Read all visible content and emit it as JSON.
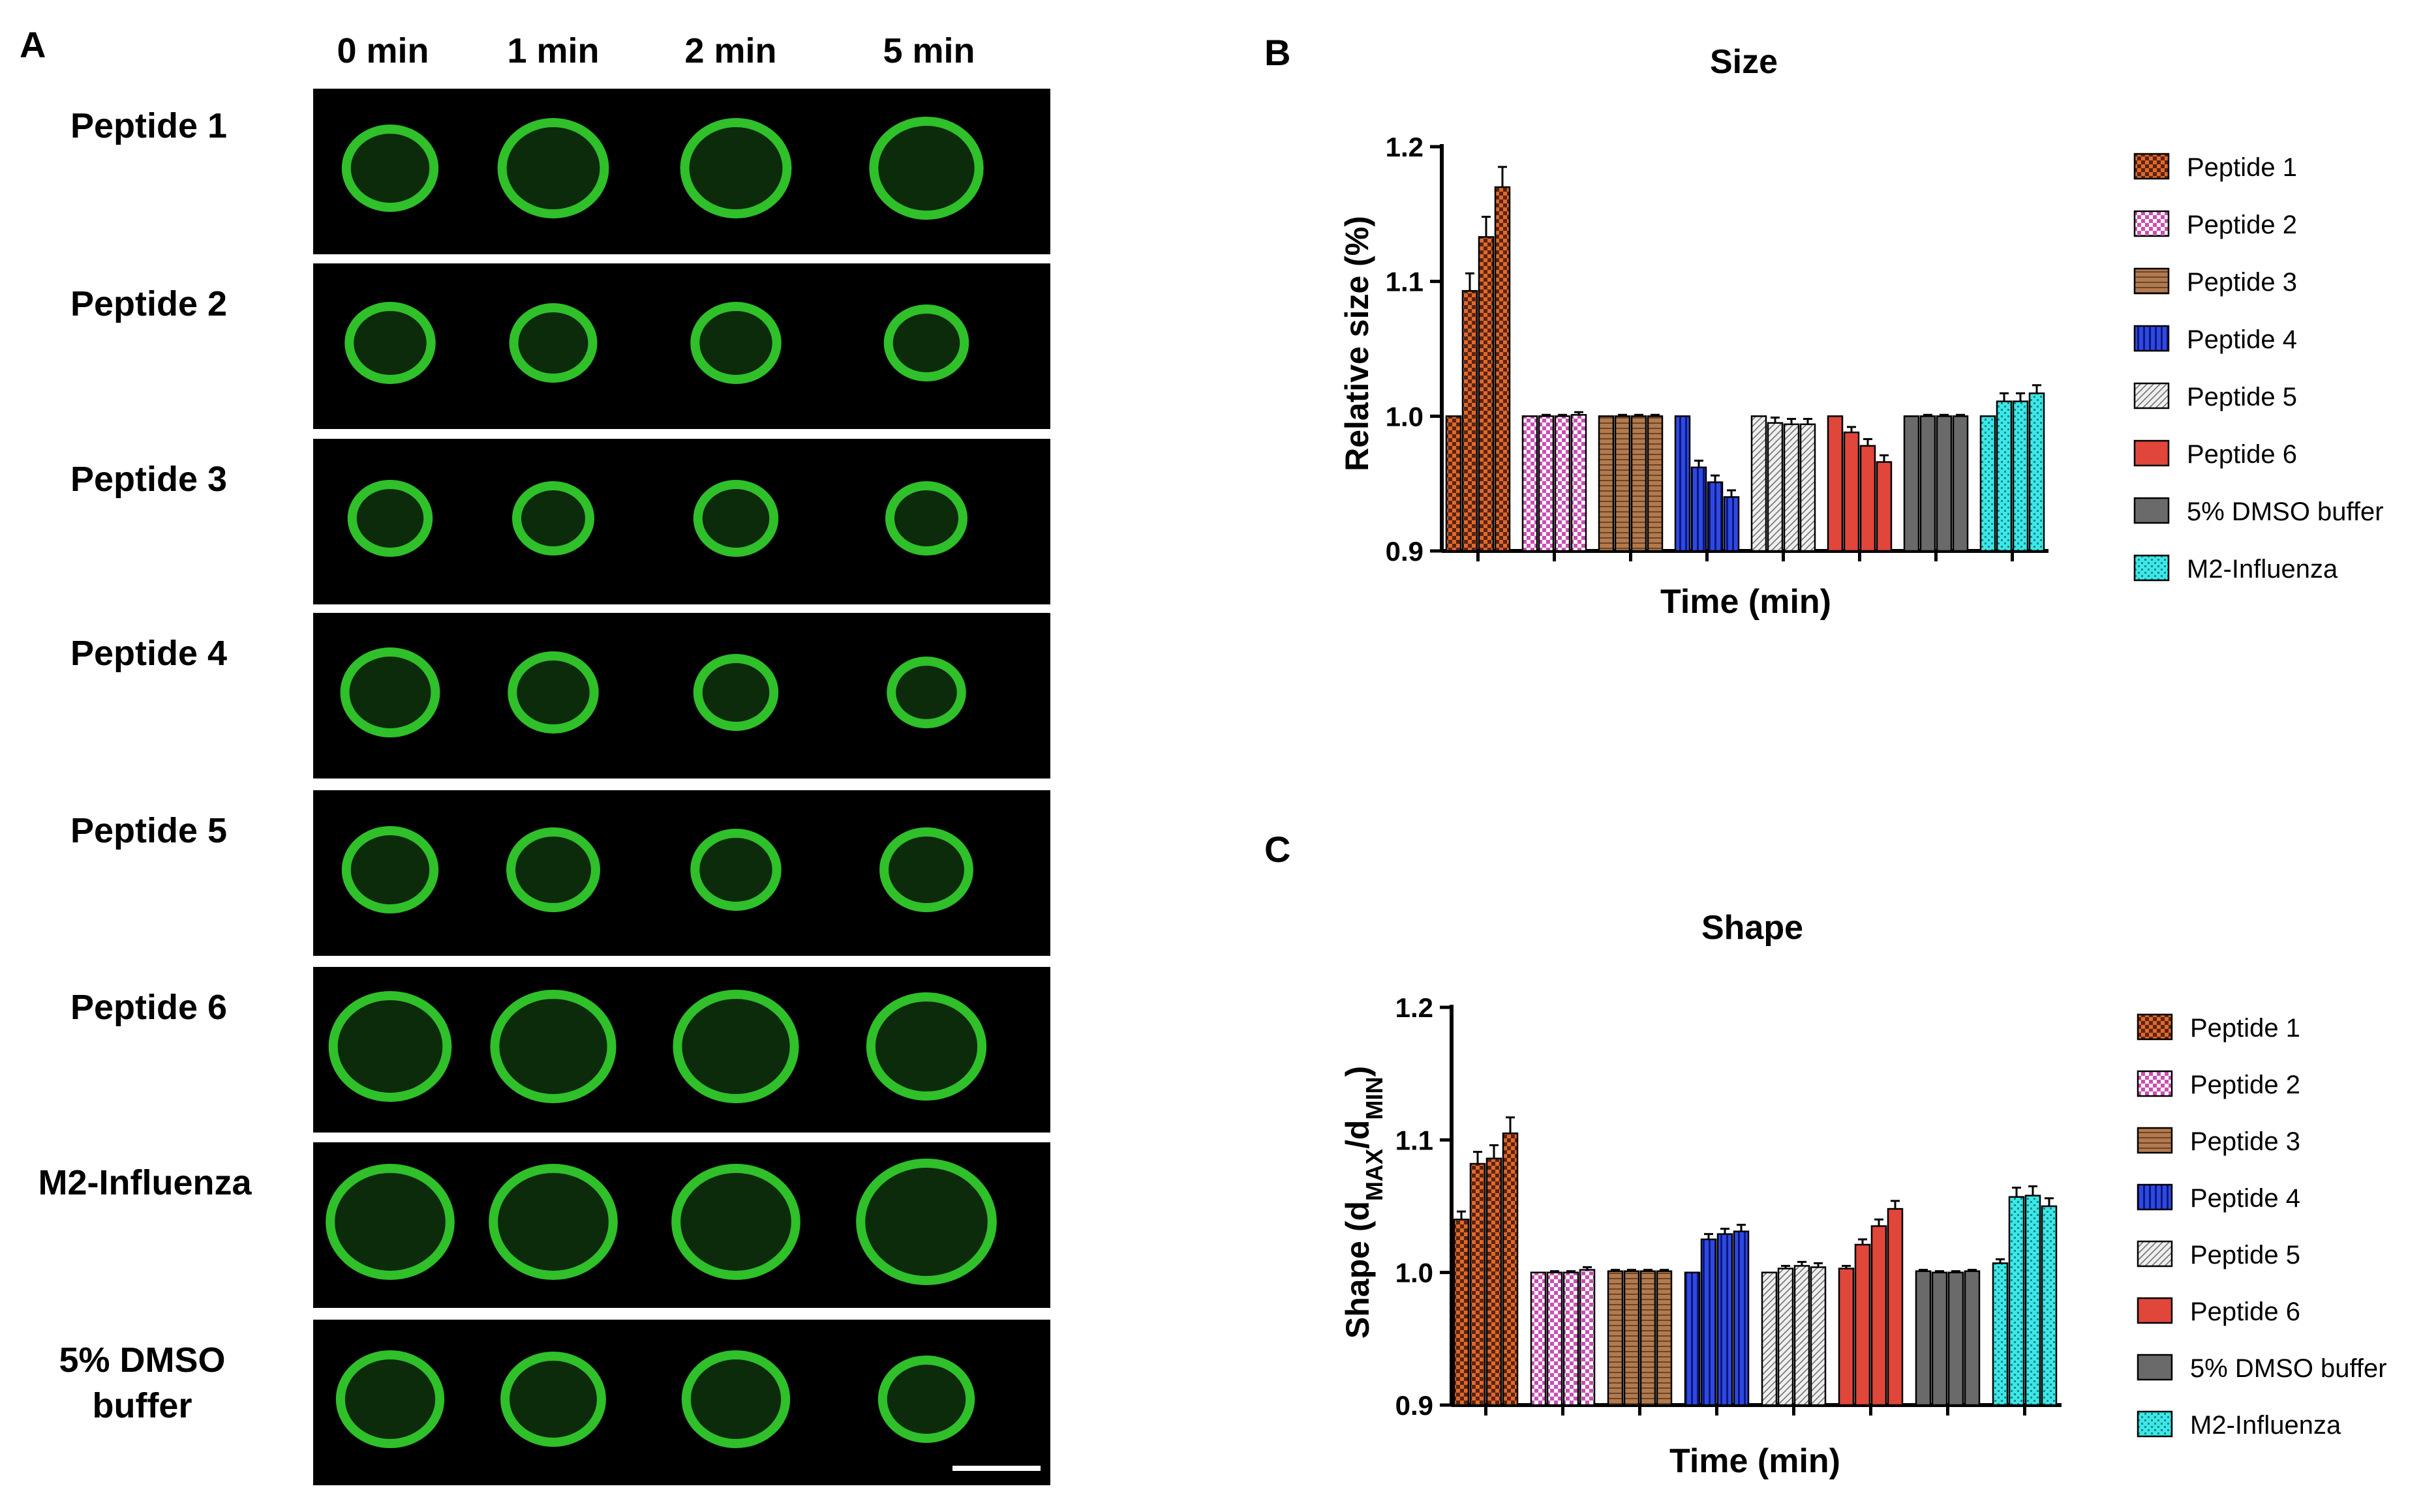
{
  "panel_a": {
    "letter": "A",
    "time_labels": [
      "0 min",
      "1 min",
      "2 min",
      "5 min"
    ],
    "row_labels": [
      [
        "Peptide 1"
      ],
      [
        "Peptide 2"
      ],
      [
        "Peptide 3"
      ],
      [
        "Peptide 4"
      ],
      [
        "Peptide 5"
      ],
      [
        "Peptide 6"
      ],
      [
        "M2-Influenza"
      ],
      [
        "5% DMSO",
        "buffer"
      ]
    ],
    "image_bg_color": "#000000",
    "cell_color": "#2fc02a"
  },
  "chart_data": [
    {
      "type": "bar",
      "panel": "B",
      "title": "Size",
      "xlabel": "Time (min)",
      "ylabel": "Relative size (%)",
      "ylim": [
        0.9,
        1.2
      ],
      "yticks": [
        "0.9",
        "1.0",
        "1.1",
        "1.2"
      ],
      "grid": false,
      "legend_position": "right",
      "series": [
        {
          "name": "Peptide 1",
          "values": [
            1.0,
            1.093,
            1.133,
            1.17
          ],
          "errors": [
            0,
            0.013,
            0.015,
            0.015
          ],
          "color": "#e0692a",
          "pattern": "checker"
        },
        {
          "name": "Peptide 2",
          "values": [
            1.0,
            1.0,
            1.0,
            1.001
          ],
          "errors": [
            0,
            0.001,
            0.001,
            0.002
          ],
          "color": "#c94fb4",
          "pattern": "checker-light"
        },
        {
          "name": "Peptide 3",
          "values": [
            1.0,
            1.0,
            1.0,
            1.0
          ],
          "errors": [
            0,
            0.001,
            0.001,
            0.001
          ],
          "color": "#b27a4f",
          "pattern": "hlines"
        },
        {
          "name": "Peptide 4",
          "values": [
            1.0,
            0.962,
            0.951,
            0.94
          ],
          "errors": [
            0,
            0.005,
            0.005,
            0.005
          ],
          "color": "#2f49e0",
          "pattern": "vlines"
        },
        {
          "name": "Peptide 5",
          "values": [
            1.0,
            0.995,
            0.994,
            0.994
          ],
          "errors": [
            0,
            0.004,
            0.004,
            0.004
          ],
          "color": "#efefef",
          "pattern": "diag"
        },
        {
          "name": "Peptide 6",
          "values": [
            1.0,
            0.988,
            0.978,
            0.966
          ],
          "errors": [
            0,
            0.004,
            0.005,
            0.005
          ],
          "color": "#e0463a",
          "pattern": "solid"
        },
        {
          "name": "5% DMSO buffer",
          "values": [
            1.0,
            1.0,
            1.0,
            1.0
          ],
          "errors": [
            0,
            0.001,
            0.001,
            0.001
          ],
          "color": "#6a6a6a",
          "pattern": "solid"
        },
        {
          "name": "M2-Influenza",
          "values": [
            1.0,
            1.011,
            1.011,
            1.017
          ],
          "errors": [
            0,
            0.006,
            0.006,
            0.006
          ],
          "color": "#3fe6e6",
          "pattern": "dots"
        }
      ]
    },
    {
      "type": "bar",
      "panel": "C",
      "title": "Shape",
      "xlabel": "Time (min)",
      "ylabel": "Shape (d",
      "ylabel_sub1": "MAX",
      "ylabel_mid": "/d",
      "ylabel_sub2": "MIN",
      "ylabel_end": ")",
      "ylim": [
        0.9,
        1.2
      ],
      "yticks": [
        "0.9",
        "1.0",
        "1.1",
        "1.2"
      ],
      "grid": false,
      "legend_position": "right",
      "series": [
        {
          "name": "Peptide 1",
          "values": [
            1.04,
            1.082,
            1.086,
            1.105
          ],
          "errors": [
            0.006,
            0.009,
            0.01,
            0.012
          ],
          "color": "#e0692a",
          "pattern": "checker"
        },
        {
          "name": "Peptide 2",
          "values": [
            1.0,
            1.0,
            1.0,
            1.002
          ],
          "errors": [
            0,
            0.001,
            0.001,
            0.002
          ],
          "color": "#c94fb4",
          "pattern": "checker-light"
        },
        {
          "name": "Peptide 3",
          "values": [
            1.001,
            1.001,
            1.001,
            1.001
          ],
          "errors": [
            0.001,
            0.001,
            0.001,
            0.001
          ],
          "color": "#b27a4f",
          "pattern": "hlines"
        },
        {
          "name": "Peptide 4",
          "values": [
            1.0,
            1.025,
            1.029,
            1.031
          ],
          "errors": [
            0,
            0.004,
            0.004,
            0.005
          ],
          "color": "#2f49e0",
          "pattern": "vlines"
        },
        {
          "name": "Peptide 5",
          "values": [
            1.0,
            1.003,
            1.005,
            1.004
          ],
          "errors": [
            0,
            0.002,
            0.003,
            0.003
          ],
          "color": "#efefef",
          "pattern": "diag"
        },
        {
          "name": "Peptide 6",
          "values": [
            1.003,
            1.021,
            1.035,
            1.048
          ],
          "errors": [
            0.002,
            0.004,
            0.005,
            0.006
          ],
          "color": "#e0463a",
          "pattern": "solid"
        },
        {
          "name": "5% DMSO buffer",
          "values": [
            1.001,
            1.0,
            1.0,
            1.001
          ],
          "errors": [
            0.001,
            0.001,
            0.001,
            0.001
          ],
          "color": "#6a6a6a",
          "pattern": "solid"
        },
        {
          "name": "M2-Influenza",
          "values": [
            1.007,
            1.057,
            1.058,
            1.05
          ],
          "errors": [
            0.003,
            0.007,
            0.007,
            0.006
          ],
          "color": "#3fe6e6",
          "pattern": "dots"
        }
      ]
    }
  ]
}
